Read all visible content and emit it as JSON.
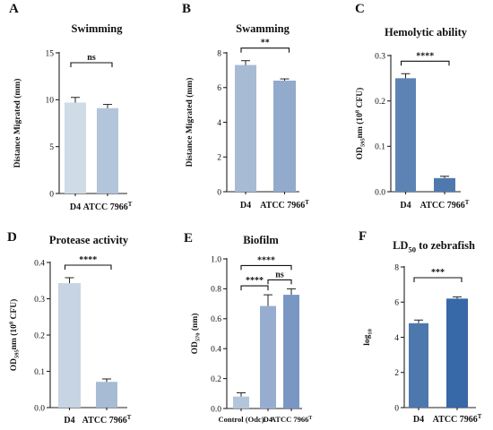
{
  "chart_data": [
    {
      "panel": "A",
      "type": "bar",
      "title": "Swimming",
      "ylabel": "Distance Migrated (mm)",
      "categories": [
        "D4",
        "ATCC 7966T"
      ],
      "values": [
        9.7,
        9.1
      ],
      "errors": [
        0.55,
        0.4
      ],
      "colors": [
        "#cfdbe7",
        "#b3c5da"
      ],
      "ylim": [
        0,
        15
      ],
      "yticks": [
        "0",
        "5",
        "10",
        "15"
      ],
      "significance": [
        {
          "from": 0,
          "to": 1,
          "label": "ns"
        }
      ]
    },
    {
      "panel": "B",
      "type": "bar",
      "title": "Swamming",
      "ylabel": "Distance Migrated (mm)",
      "categories": [
        "D4",
        "ATCC 7966T"
      ],
      "values": [
        7.3,
        6.4
      ],
      "errors": [
        0.25,
        0.1
      ],
      "colors": [
        "#a7bbd4",
        "#92aacb"
      ],
      "ylim": [
        0,
        8
      ],
      "yticks": [
        "0",
        "2",
        "4",
        "6",
        "8"
      ],
      "significance": [
        {
          "from": 0,
          "to": 1,
          "label": "**"
        }
      ]
    },
    {
      "panel": "C",
      "type": "bar",
      "title": "Hemolytic ability",
      "ylabel": "OD595nm (10^8 CFU)",
      "categories": [
        "D4",
        "ATCC 7966T"
      ],
      "values": [
        0.25,
        0.03
      ],
      "errors": [
        0.01,
        0.004
      ],
      "colors": [
        "#5d83b4",
        "#4f79ae"
      ],
      "ylim": [
        0,
        0.3
      ],
      "yticks": [
        "0.0",
        "0.1",
        "0.2",
        "0.3"
      ],
      "significance": [
        {
          "from": 0,
          "to": 1,
          "label": "****"
        }
      ]
    },
    {
      "panel": "D",
      "type": "bar",
      "title": "Protease activity",
      "ylabel": "OD595nm (10^8 CFU)",
      "categories": [
        "D4",
        "ATCC 7966T"
      ],
      "values": [
        0.343,
        0.071
      ],
      "errors": [
        0.015,
        0.008
      ],
      "colors": [
        "#c6d4e3",
        "#a7bbd4"
      ],
      "ylim": [
        0,
        0.4
      ],
      "yticks": [
        "0.0",
        "0.1",
        "0.2",
        "0.3",
        "0.4"
      ],
      "significance": [
        {
          "from": 0,
          "to": 1,
          "label": "****"
        }
      ]
    },
    {
      "panel": "E",
      "type": "bar",
      "title": "Biofilm",
      "ylabel": "OD570 (nm)",
      "categories": [
        "Control (Odc)",
        "D4",
        "ATCC 7966T"
      ],
      "values": [
        0.08,
        0.685,
        0.76
      ],
      "errors": [
        0.025,
        0.075,
        0.04
      ],
      "colors": [
        "#b3c5da",
        "#96add0",
        "#7997c2"
      ],
      "ylim": [
        0,
        1.0
      ],
      "yticks": [
        "0.0",
        "0.2",
        "0.4",
        "0.6",
        "0.8",
        "1.0"
      ],
      "significance": [
        {
          "from": 0,
          "to": 1,
          "label": "****"
        },
        {
          "from": 1,
          "to": 2,
          "label": "ns"
        },
        {
          "from": 0,
          "to": 2,
          "label": "****"
        }
      ]
    },
    {
      "panel": "F",
      "type": "bar",
      "title": "LD50 to zebrafish",
      "ylabel": "log10",
      "categories": [
        "D4",
        "ATCC 7966T"
      ],
      "values": [
        4.8,
        6.2
      ],
      "errors": [
        0.18,
        0.1
      ],
      "colors": [
        "#4c78ae",
        "#3768a7"
      ],
      "ylim": [
        0,
        8
      ],
      "yticks": [
        "0",
        "2",
        "4",
        "6",
        "8"
      ],
      "significance": [
        {
          "from": 0,
          "to": 1,
          "label": "***"
        }
      ]
    }
  ]
}
